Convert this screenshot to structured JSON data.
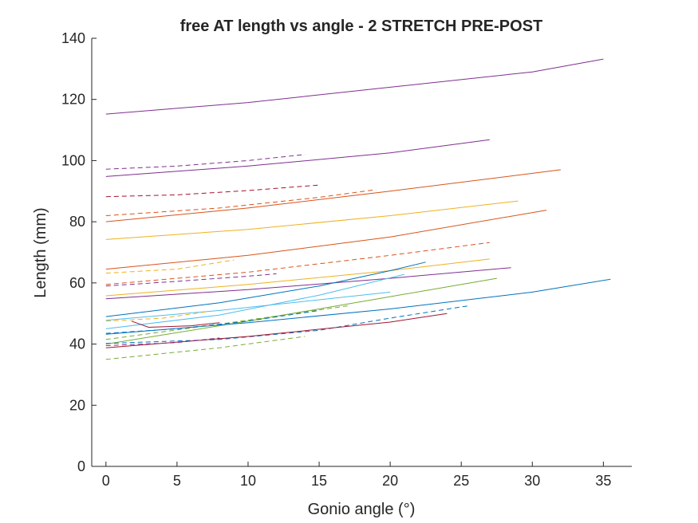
{
  "chart_data": {
    "type": "line",
    "title": "free AT length vs angle - 2 STRETCH PRE-POST",
    "xlabel": "Gonio angle (°)",
    "ylabel": "Length (mm)",
    "xlim": [
      -1,
      37
    ],
    "ylim": [
      0,
      140
    ],
    "xticks": [
      0,
      5,
      10,
      15,
      20,
      25,
      30,
      35
    ],
    "yticks": [
      0,
      20,
      40,
      60,
      80,
      100,
      120,
      140
    ],
    "grid": false,
    "legend": "none",
    "series": [
      {
        "color": "#7E2F8E",
        "dash": false,
        "points": [
          [
            0,
            115.2
          ],
          [
            10,
            119
          ],
          [
            20,
            124
          ],
          [
            30,
            129
          ],
          [
            35,
            133.2
          ]
        ]
      },
      {
        "color": "#7E2F8E",
        "dash": false,
        "points": [
          [
            0,
            94.8
          ],
          [
            10,
            98.2
          ],
          [
            20,
            102.5
          ],
          [
            27,
            106.8
          ]
        ]
      },
      {
        "color": "#7E2F8E",
        "dash": true,
        "points": [
          [
            0,
            97.2
          ],
          [
            5,
            98.2
          ],
          [
            10,
            100
          ],
          [
            14,
            102
          ]
        ]
      },
      {
        "color": "#A2142F",
        "dash": true,
        "points": [
          [
            0,
            88.2
          ],
          [
            5,
            88.8
          ],
          [
            10,
            90.2
          ],
          [
            15,
            92
          ]
        ]
      },
      {
        "color": "#D95319",
        "dash": true,
        "points": [
          [
            0,
            82
          ],
          [
            8,
            84.5
          ],
          [
            15,
            88
          ],
          [
            19,
            90.5
          ]
        ]
      },
      {
        "color": "#D95319",
        "dash": false,
        "points": [
          [
            0,
            80
          ],
          [
            10,
            84.5
          ],
          [
            20,
            90
          ],
          [
            32,
            97
          ]
        ]
      },
      {
        "color": "#EDB120",
        "dash": false,
        "points": [
          [
            0,
            74.2
          ],
          [
            10,
            77.5
          ],
          [
            20,
            82
          ],
          [
            29,
            86.8
          ]
        ]
      },
      {
        "color": "#D95319",
        "dash": false,
        "points": [
          [
            0,
            64.5
          ],
          [
            10,
            69
          ],
          [
            20,
            75
          ],
          [
            31,
            83.8
          ]
        ]
      },
      {
        "color": "#D95319",
        "dash": true,
        "points": [
          [
            0,
            59.5
          ],
          [
            10,
            63.5
          ],
          [
            20,
            69
          ],
          [
            27,
            73.2
          ]
        ]
      },
      {
        "color": "#EDB120",
        "dash": true,
        "points": [
          [
            0,
            63.2
          ],
          [
            5,
            64.5
          ],
          [
            9,
            67.5
          ]
        ]
      },
      {
        "color": "#7E2F8E",
        "dash": true,
        "points": [
          [
            0,
            59
          ],
          [
            5,
            60.5
          ],
          [
            10,
            62.2
          ],
          [
            12,
            63
          ]
        ]
      },
      {
        "color": "#EDB120",
        "dash": false,
        "points": [
          [
            0,
            55.8
          ],
          [
            10,
            59.5
          ],
          [
            20,
            64
          ],
          [
            27,
            67.8
          ]
        ]
      },
      {
        "color": "#7E2F8E",
        "dash": false,
        "points": [
          [
            0,
            54.8
          ],
          [
            10,
            57.8
          ],
          [
            20,
            61.5
          ],
          [
            28.5,
            65
          ]
        ]
      },
      {
        "color": "#0072BD",
        "dash": false,
        "points": [
          [
            0,
            49
          ],
          [
            8,
            53.5
          ],
          [
            15,
            59
          ],
          [
            20,
            64
          ],
          [
            22.5,
            66.8
          ]
        ]
      },
      {
        "color": "#4DBEEE",
        "dash": false,
        "points": [
          [
            0,
            45
          ],
          [
            8,
            49.5
          ],
          [
            15,
            56
          ],
          [
            21,
            62.8
          ]
        ]
      },
      {
        "color": "#4DBEEE",
        "dash": false,
        "points": [
          [
            0,
            47.8
          ],
          [
            8,
            51
          ],
          [
            15,
            54.5
          ],
          [
            20,
            57
          ]
        ]
      },
      {
        "color": "#77AC30",
        "dash": false,
        "points": [
          [
            0,
            40
          ],
          [
            10,
            47.5
          ],
          [
            20,
            55.5
          ],
          [
            27.5,
            61.5
          ]
        ]
      },
      {
        "color": "#0072BD",
        "dash": false,
        "points": [
          [
            0,
            43.2
          ],
          [
            10,
            47
          ],
          [
            20,
            51.5
          ],
          [
            30,
            57
          ],
          [
            35.5,
            61.2
          ]
        ]
      },
      {
        "color": "#0072BD",
        "dash": true,
        "points": [
          [
            0,
            40.2
          ],
          [
            8,
            41.5
          ],
          [
            15,
            44.5
          ],
          [
            20,
            48.5
          ],
          [
            25.5,
            52.5
          ]
        ]
      },
      {
        "color": "#A2142F",
        "dash": false,
        "points": [
          [
            0,
            38.8
          ],
          [
            10,
            42.5
          ],
          [
            20,
            47.2
          ],
          [
            24,
            50
          ]
        ]
      },
      {
        "color": "#7E2F8E",
        "dash": true,
        "points": [
          [
            0,
            39.5
          ],
          [
            5,
            40.5
          ],
          [
            8,
            42
          ]
        ]
      },
      {
        "color": "#77AC30",
        "dash": true,
        "points": [
          [
            0,
            35
          ],
          [
            8,
            38.8
          ],
          [
            14,
            42.5
          ]
        ]
      },
      {
        "color": "#77AC30",
        "dash": true,
        "points": [
          [
            0,
            41.5
          ],
          [
            8,
            46.5
          ],
          [
            14,
            50.5
          ],
          [
            17,
            52.5
          ]
        ]
      },
      {
        "color": "#0072BD",
        "dash": true,
        "points": [
          [
            0,
            43.5
          ],
          [
            5,
            45
          ],
          [
            10,
            47.5
          ],
          [
            15,
            51
          ]
        ]
      },
      {
        "color": "#A2142F",
        "dash": false,
        "points": [
          [
            1.8,
            47.5
          ],
          [
            3,
            45.5
          ],
          [
            6,
            46
          ],
          [
            8,
            47
          ]
        ]
      },
      {
        "color": "#EDB120",
        "dash": true,
        "points": [
          [
            0,
            47.5
          ],
          [
            4,
            48.5
          ],
          [
            7,
            50.5
          ]
        ]
      }
    ]
  }
}
